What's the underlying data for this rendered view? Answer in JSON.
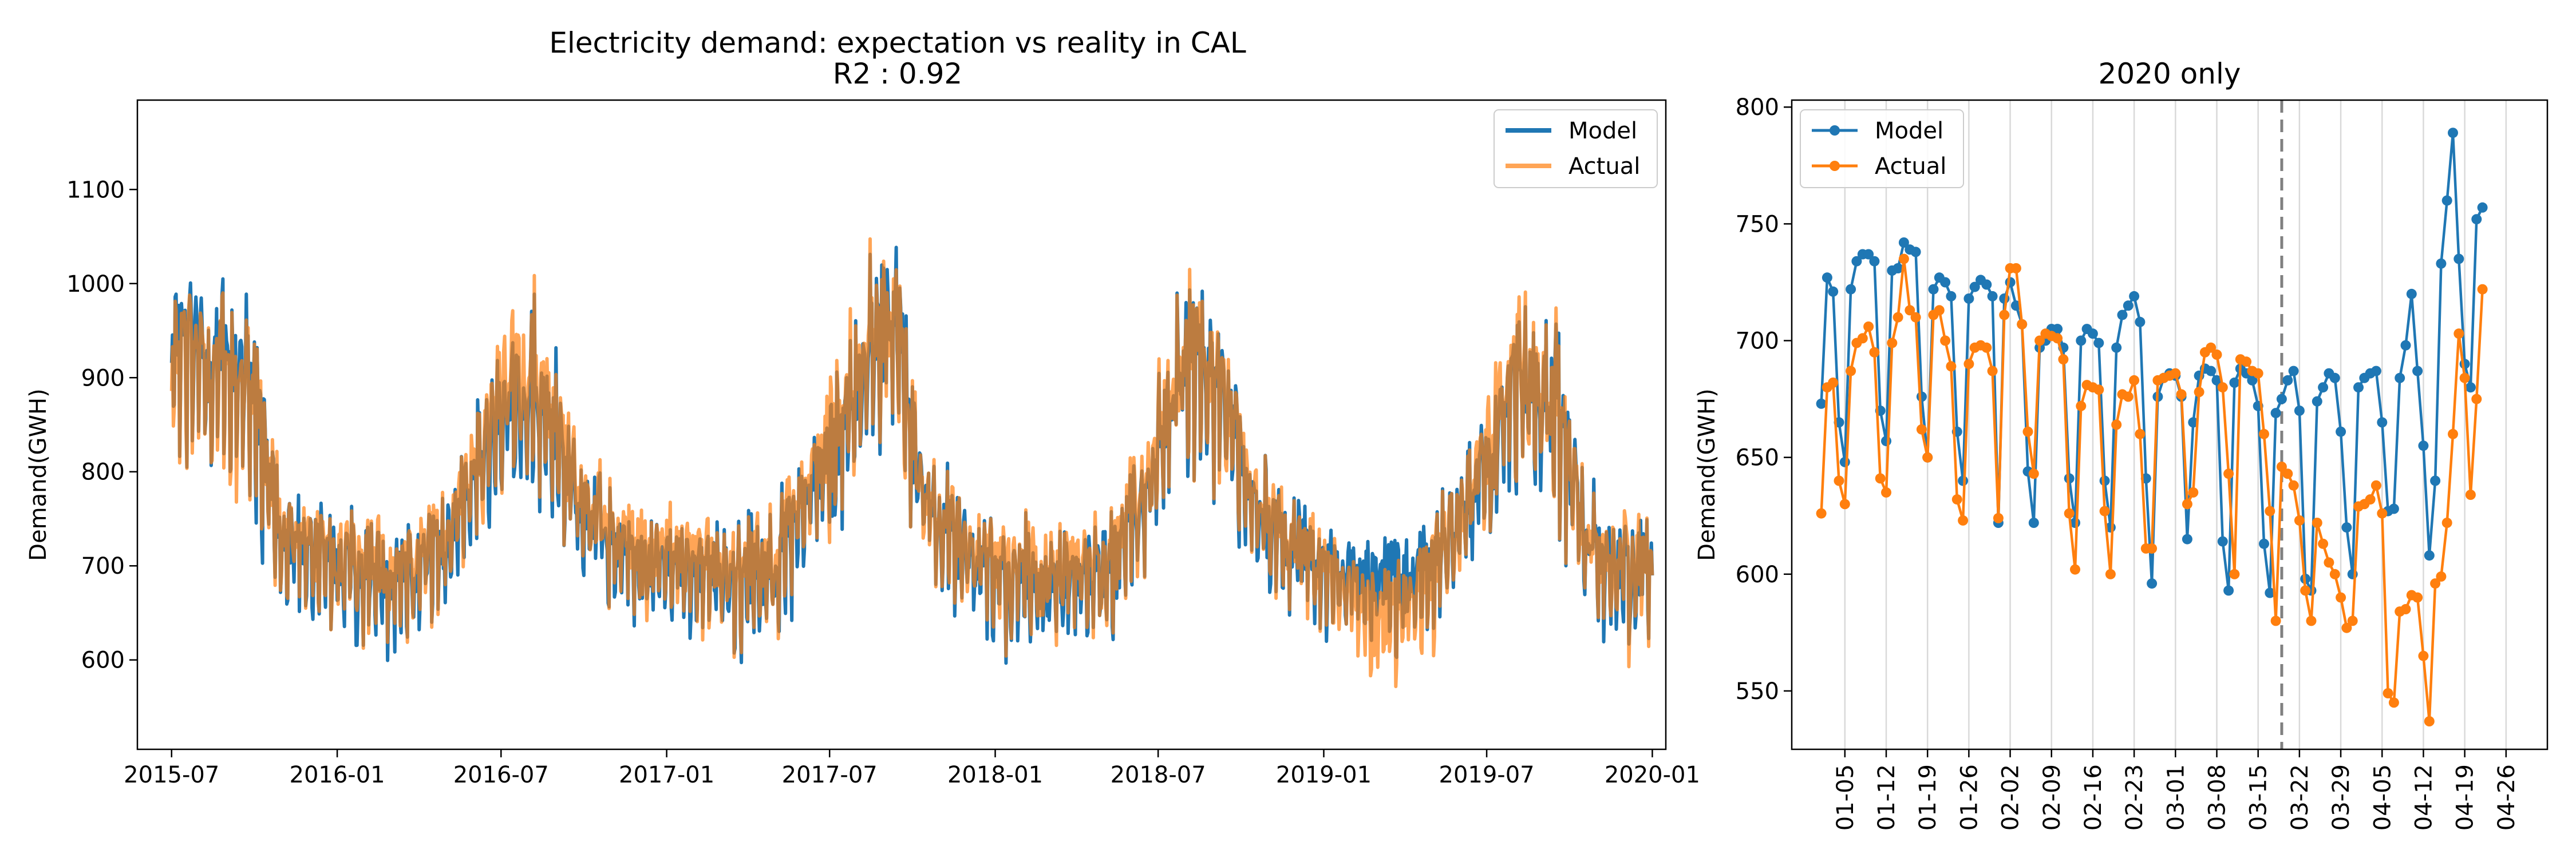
{
  "chart_data": [
    {
      "type": "line",
      "title": "Electricity demand: expectation vs reality in CAL",
      "subtitle": "R2 : 0.92",
      "xlabel": "",
      "ylabel": "Demand(GWH)",
      "xlim": [
        "2015-05-24",
        "2020-01-16"
      ],
      "ylim": [
        505,
        1195
      ],
      "xticks": [
        "2015-07",
        "2016-01",
        "2016-07",
        "2017-01",
        "2017-07",
        "2018-01",
        "2018-07",
        "2019-01",
        "2019-07",
        "2020-01"
      ],
      "yticks": [
        600,
        700,
        800,
        900,
        1000,
        1100
      ],
      "grid": false,
      "legend_position": "top-right",
      "x_start": "2015-07-01",
      "x_end": "2020-01-01",
      "series": [
        {
          "name": "Model",
          "color": "#1f77b4",
          "alpha": 1.0,
          "x": [
            "2015-07-01",
            "2015-09-01",
            "2015-10-01",
            "2015-11-01",
            "2016-01-01",
            "2016-03-01",
            "2016-05-01",
            "2016-06-01",
            "2016-07-15",
            "2016-09-01",
            "2016-10-01",
            "2016-11-01",
            "2017-01-01",
            "2017-03-01",
            "2017-05-01",
            "2017-07-01",
            "2017-08-15",
            "2017-09-15",
            "2017-10-15",
            "2018-01-01",
            "2018-03-01",
            "2018-05-01",
            "2018-06-15",
            "2018-08-01",
            "2018-09-15",
            "2018-10-15",
            "2019-01-01",
            "2019-03-01",
            "2019-05-01",
            "2019-06-15",
            "2019-08-01",
            "2019-09-15",
            "2019-10-15",
            "2019-11-15",
            "2020-01-01"
          ],
          "y": [
            930,
            920,
            880,
            720,
            700,
            690,
            720,
            800,
            880,
            850,
            760,
            720,
            700,
            690,
            700,
            820,
            930,
            960,
            760,
            690,
            680,
            690,
            770,
            920,
            880,
            760,
            700,
            680,
            700,
            770,
            900,
            880,
            740,
            700,
            700
          ]
        },
        {
          "name": "Actual",
          "color": "#ff7f0e",
          "alpha": 0.7,
          "x": [
            "2015-07-01",
            "2015-09-01",
            "2015-10-01",
            "2015-11-01",
            "2016-01-01",
            "2016-03-01",
            "2016-05-01",
            "2016-06-01",
            "2016-07-15",
            "2016-09-01",
            "2016-10-01",
            "2016-11-01",
            "2017-01-01",
            "2017-03-01",
            "2017-05-01",
            "2017-07-01",
            "2017-08-15",
            "2017-09-15",
            "2017-10-15",
            "2018-01-01",
            "2018-03-01",
            "2018-05-01",
            "2018-06-15",
            "2018-08-01",
            "2018-09-15",
            "2018-10-15",
            "2019-01-01",
            "2019-03-01",
            "2019-05-01",
            "2019-06-15",
            "2019-08-01",
            "2019-09-15",
            "2019-10-15",
            "2019-11-15",
            "2020-01-01"
          ],
          "y": [
            920,
            910,
            880,
            720,
            710,
            700,
            730,
            810,
            900,
            860,
            770,
            730,
            710,
            700,
            710,
            830,
            940,
            960,
            760,
            700,
            690,
            700,
            780,
            920,
            880,
            770,
            700,
            640,
            690,
            780,
            910,
            880,
            740,
            700,
            700
          ]
        }
      ]
    },
    {
      "type": "line",
      "title": "2020 only",
      "xlabel": "",
      "ylabel": "Demand(GWH)",
      "xlim": [
        "2019-12-27",
        "2020-05-03"
      ],
      "ylim": [
        525,
        803
      ],
      "xticks": [
        "01-05",
        "01-12",
        "01-19",
        "01-26",
        "02-02",
        "02-09",
        "02-16",
        "02-23",
        "03-01",
        "03-08",
        "03-15",
        "03-22",
        "03-29",
        "04-05",
        "04-12",
        "04-19",
        "04-26"
      ],
      "yticks": [
        550,
        600,
        650,
        700,
        750,
        800
      ],
      "grid": "vertical",
      "marker": "circle",
      "vline": {
        "x": "2020-03-19",
        "style": "dashed",
        "color": "#808080"
      },
      "legend_position": "top-left",
      "x_start": "2020-01-01",
      "series": [
        {
          "name": "Model",
          "color": "#1f77b4",
          "y": [
            673,
            727,
            721,
            665,
            648,
            722,
            734,
            737,
            737,
            734,
            670,
            657,
            730,
            731,
            742,
            739,
            738,
            676,
            650,
            722,
            727,
            725,
            719,
            661,
            640,
            718,
            723,
            726,
            724,
            719,
            622,
            718,
            725,
            715,
            707,
            644,
            622,
            697,
            700,
            705,
            705,
            697,
            641,
            622,
            700,
            705,
            703,
            699,
            640,
            620,
            697,
            711,
            715,
            719,
            708,
            641,
            596,
            676,
            684,
            686,
            685,
            676,
            615,
            665,
            685,
            688,
            687,
            683,
            614,
            593,
            682,
            688,
            686,
            683,
            672,
            613,
            592,
            669,
            675,
            683,
            687,
            670,
            598,
            593,
            674,
            680,
            686,
            684,
            661,
            620,
            600,
            680,
            684,
            686,
            687,
            665,
            627,
            628,
            684,
            698,
            720,
            687,
            655,
            608,
            640,
            733,
            760,
            789,
            735,
            690,
            680,
            752,
            757
          ]
        },
        {
          "name": "Actual",
          "color": "#ff7f0e",
          "y": [
            626,
            680,
            682,
            640,
            630,
            687,
            699,
            701,
            706,
            695,
            641,
            635,
            699,
            710,
            735,
            713,
            710,
            662,
            650,
            711,
            713,
            700,
            689,
            632,
            623,
            690,
            697,
            698,
            697,
            687,
            624,
            711,
            731,
            731,
            707,
            661,
            643,
            700,
            703,
            702,
            701,
            692,
            626,
            602,
            672,
            681,
            680,
            679,
            627,
            600,
            664,
            677,
            676,
            683,
            660,
            611,
            611,
            683,
            684,
            685,
            686,
            677,
            630,
            635,
            678,
            695,
            697,
            694,
            680,
            643,
            600,
            692,
            691,
            687,
            686,
            660,
            627,
            580,
            646,
            643,
            638,
            623,
            593,
            580,
            622,
            613,
            605,
            600,
            590,
            577,
            580,
            629,
            630,
            632,
            638,
            626,
            549,
            545,
            584,
            585,
            591,
            590,
            565,
            537,
            596,
            599,
            622,
            660,
            703,
            684,
            634,
            675,
            722
          ]
        }
      ]
    }
  ]
}
